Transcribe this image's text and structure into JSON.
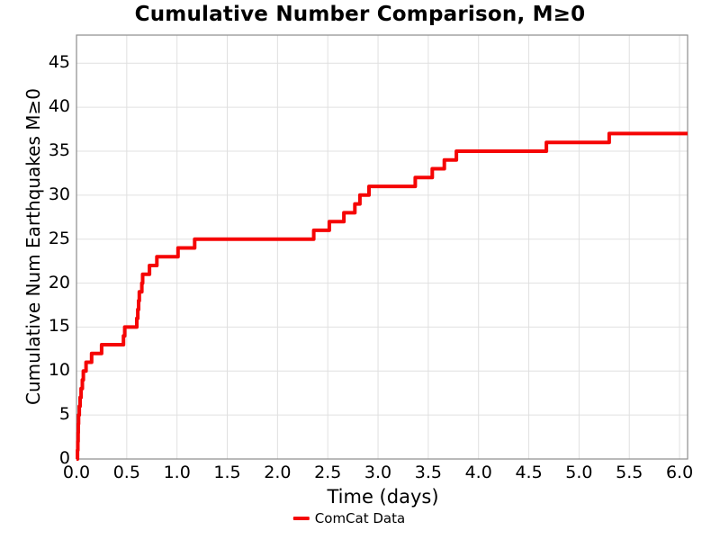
{
  "figure": {
    "background": "#ffffff",
    "text_color": "#000000"
  },
  "chart_data": {
    "type": "line",
    "style": "step-post",
    "title": "Cumulative Number Comparison, M≥0",
    "xlabel": "Time (days)",
    "ylabel": "Cumulative Num Earthquakes M≥0",
    "xlim": [
      0,
      6.08
    ],
    "ylim": [
      0,
      48.2
    ],
    "grid": true,
    "grid_color": "#e0e0e0",
    "spine_color": "#8c8c8c",
    "xticks": [
      {
        "v": 0.0,
        "label": "0.0"
      },
      {
        "v": 0.5,
        "label": "0.5"
      },
      {
        "v": 1.0,
        "label": "1.0"
      },
      {
        "v": 1.5,
        "label": "1.5"
      },
      {
        "v": 2.0,
        "label": "2.0"
      },
      {
        "v": 2.5,
        "label": "2.5"
      },
      {
        "v": 3.0,
        "label": "3.0"
      },
      {
        "v": 3.5,
        "label": "3.5"
      },
      {
        "v": 4.0,
        "label": "4.0"
      },
      {
        "v": 4.5,
        "label": "4.5"
      },
      {
        "v": 5.0,
        "label": "5.0"
      },
      {
        "v": 5.5,
        "label": "5.5"
      },
      {
        "v": 6.0,
        "label": "6.0"
      }
    ],
    "yticks": [
      {
        "v": 0,
        "label": "0"
      },
      {
        "v": 5,
        "label": "5"
      },
      {
        "v": 10,
        "label": "10"
      },
      {
        "v": 15,
        "label": "15"
      },
      {
        "v": 20,
        "label": "20"
      },
      {
        "v": 25,
        "label": "25"
      },
      {
        "v": 30,
        "label": "30"
      },
      {
        "v": 35,
        "label": "35"
      },
      {
        "v": 40,
        "label": "40"
      },
      {
        "v": 45,
        "label": "45"
      }
    ],
    "legend": {
      "position": "below-x-axis",
      "entries": [
        {
          "label": "ComCat Data",
          "color": "#f50505"
        }
      ]
    },
    "series": [
      {
        "name": "ComCat Data",
        "color": "#f50505",
        "line_width": 4,
        "step_points": [
          [
            0.0,
            0
          ],
          [
            0.01,
            1
          ],
          [
            0.013,
            2
          ],
          [
            0.016,
            3
          ],
          [
            0.018,
            4
          ],
          [
            0.021,
            5
          ],
          [
            0.028,
            6
          ],
          [
            0.036,
            7
          ],
          [
            0.046,
            8
          ],
          [
            0.058,
            9
          ],
          [
            0.068,
            10
          ],
          [
            0.095,
            11
          ],
          [
            0.15,
            12
          ],
          [
            0.25,
            13
          ],
          [
            0.467,
            14
          ],
          [
            0.48,
            15
          ],
          [
            0.6,
            16
          ],
          [
            0.61,
            17
          ],
          [
            0.618,
            18
          ],
          [
            0.625,
            19
          ],
          [
            0.65,
            20
          ],
          [
            0.658,
            21
          ],
          [
            0.726,
            22
          ],
          [
            0.8,
            23
          ],
          [
            1.01,
            24
          ],
          [
            1.176,
            25
          ],
          [
            2.36,
            26
          ],
          [
            2.515,
            27
          ],
          [
            2.66,
            28
          ],
          [
            2.77,
            29
          ],
          [
            2.82,
            30
          ],
          [
            2.91,
            31
          ],
          [
            3.37,
            32
          ],
          [
            3.54,
            33
          ],
          [
            3.66,
            34
          ],
          [
            3.78,
            35
          ],
          [
            4.675,
            36
          ],
          [
            5.3,
            37
          ]
        ],
        "end_x": 6.08,
        "final_value": 37
      }
    ]
  }
}
